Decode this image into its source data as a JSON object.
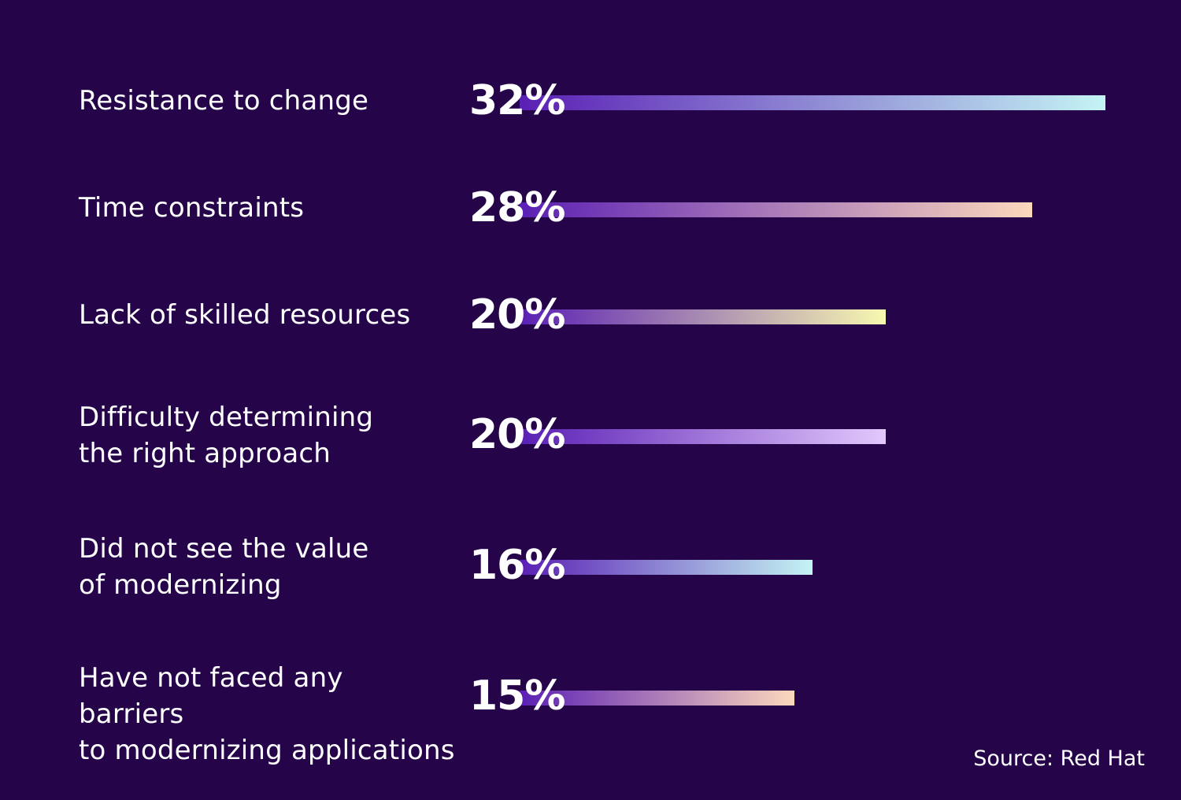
{
  "chart_data": {
    "type": "bar",
    "orientation": "horizontal",
    "categories": [
      "Resistance to change",
      "Time constraints",
      "Lack of skilled resources",
      "Difficulty determining\nthe right approach",
      "Did not see the value\nof modernizing",
      "Have not faced any barriers\nto modernizing applications"
    ],
    "values": [
      32,
      28,
      20,
      20,
      16,
      15
    ],
    "value_labels": [
      "32%",
      "28%",
      "20%",
      "20%",
      "16%",
      "15%"
    ],
    "xlim": [
      0,
      32
    ],
    "grid": false,
    "bar_end_colors": [
      "#c4f4f4",
      "#fcd8bc",
      "#f8f8b0",
      "#e2c8fc",
      "#c4f4f4",
      "#fcd8bc"
    ],
    "bar_start_color": "#5a1fb4"
  },
  "source": "Source: Red Hat",
  "colors": {
    "background": "#25044a",
    "text": "#ffffff"
  }
}
